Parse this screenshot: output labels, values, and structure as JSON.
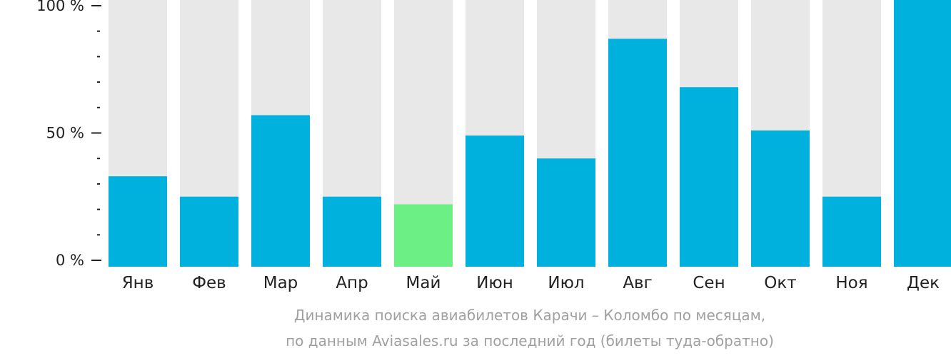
{
  "chart_data": {
    "type": "bar",
    "title": "",
    "xlabel": "",
    "ylabel": "",
    "ylim": [
      0,
      100
    ],
    "y_ticks": [
      {
        "value": 0,
        "label": "0 %"
      },
      {
        "value": 50,
        "label": "50 %"
      },
      {
        "value": 100,
        "label": "100 %"
      }
    ],
    "y_minor_step": 10,
    "categories": [
      "Янв",
      "Фев",
      "Мар",
      "Апр",
      "Май",
      "Июн",
      "Июл",
      "Авг",
      "Сен",
      "Окт",
      "Ноя",
      "Дек"
    ],
    "values": [
      33,
      25,
      57,
      25,
      22,
      49,
      40,
      87,
      68,
      51,
      25,
      100
    ],
    "highlight_index": 4,
    "grid": false,
    "legend": "none"
  },
  "colors": {
    "bar": "#00b0dd",
    "bar_highlight": "#6cf085",
    "bar_background": "#e8e8e8",
    "axis": "#222222",
    "caption": "#a0a0a0"
  },
  "caption": {
    "line1": "Динамика поиска авиабилетов Карачи – Коломбо по месяцам,",
    "line2": "по данным Aviasales.ru за последний год (билеты туда-обратно)"
  }
}
